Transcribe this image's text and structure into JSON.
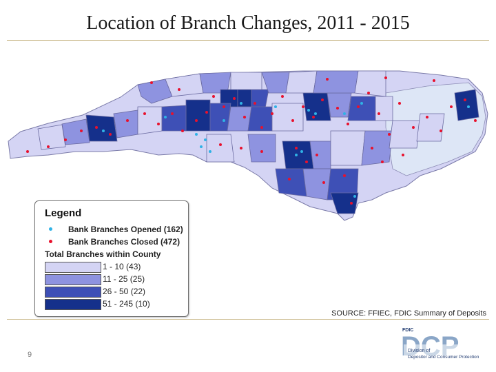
{
  "title": "Location of Branch Changes, 2011 - 2015",
  "legend": {
    "title": "Legend",
    "opened": "Bank Branches Opened (162)",
    "closed": "Bank Branches Closed (472)",
    "total_title": "Total Branches within County",
    "classes": [
      {
        "label": "1 - 10 (43)",
        "color": "#d4d4f4"
      },
      {
        "label": "11 - 25 (25)",
        "color": "#8e93e0"
      },
      {
        "label": "26 - 50 (22)",
        "color": "#3e50b6"
      },
      {
        "label": "51 - 245 (10)",
        "color": "#15308b"
      }
    ],
    "opened_color": "#2fb2e6",
    "closed_color": "#e8112d"
  },
  "source": "SOURCE: FFIEC, FDIC Summary of Deposits",
  "page_number": "9",
  "logo": {
    "top_label": "FDIC",
    "letters": "DCP",
    "caption_1": "Division of",
    "caption_2": "Depositor and Consumer Protection"
  }
}
